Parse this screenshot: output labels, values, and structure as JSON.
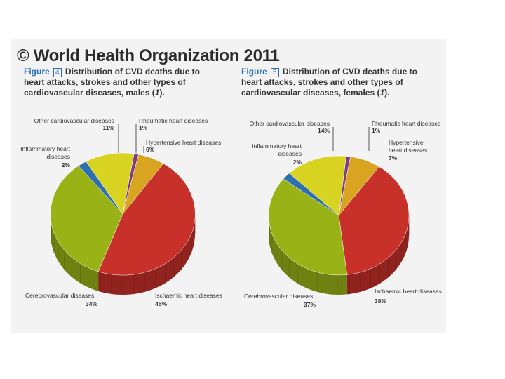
{
  "copyright": "© World Health Organization 2011",
  "colors": {
    "ischaemic": "#c8302a",
    "cerebrovascular": "#99b317",
    "inflammatory": "#2e6fb0",
    "other": "#d8d321",
    "rheumatic": "#7d3a86",
    "hypertensive": "#d9a520"
  },
  "chart_data": [
    {
      "type": "pie",
      "figure_label": "Figure",
      "figure_number": "4",
      "title": "Distribution of CVD deaths due to heart attacks, strokes and other types of cardiovascular diseases, males (1).",
      "title_main": "Distribution of CVD deaths due to heart attacks, strokes and other types of cardiovascular diseases, males (",
      "title_ref": "1",
      "title_end": ").",
      "slices": [
        {
          "key": "ischaemic",
          "label": "Ischaemic heart diseases",
          "value": 46,
          "value_label": "46%"
        },
        {
          "key": "cerebrovascular",
          "label": "Cerebrovascular diseases",
          "value": 34,
          "value_label": "34%"
        },
        {
          "key": "inflammatory",
          "label": "Inflammatory heart diseases",
          "label_lines": [
            "Inflammatory heart",
            "diseases"
          ],
          "value": 2,
          "value_label": "2%"
        },
        {
          "key": "other",
          "label": "Other cardiovascular diseases",
          "value": 11,
          "value_label": "11%"
        },
        {
          "key": "rheumatic",
          "label": "Rheumatic heart diseases",
          "value": 1,
          "value_label": "1%"
        },
        {
          "key": "hypertensive",
          "label": "Hypertensive heart diseases",
          "label_lines": [
            "Hypertensive heart diseases"
          ],
          "value": 6,
          "value_label": "6%"
        }
      ]
    },
    {
      "type": "pie",
      "figure_label": "Figure",
      "figure_number": "5",
      "title": "Distribution of CVD deaths due to heart attacks, strokes and other types of cardiovascular diseases, females (1).",
      "title_main": "Distribution of CVD deaths due to heart attacks, strokes and other types of cardiovascular diseases, females (",
      "title_ref": "1",
      "title_end": ").",
      "slices": [
        {
          "key": "ischaemic",
          "label": "Ischaemic heart diseases",
          "value": 38,
          "value_label": "38%"
        },
        {
          "key": "cerebrovascular",
          "label": "Cerebrovascular diseases",
          "value": 37,
          "value_label": "37%"
        },
        {
          "key": "inflammatory",
          "label": "Inflammatory heart diseases",
          "label_lines": [
            "Inflammatory heart",
            "diseases"
          ],
          "value": 2,
          "value_label": "2%"
        },
        {
          "key": "other",
          "label": "Other cardiovascular diseases",
          "value": 14,
          "value_label": "14%"
        },
        {
          "key": "rheumatic",
          "label": "Rheumatic heart diseases",
          "value": 1,
          "value_label": "1%"
        },
        {
          "key": "hypertensive",
          "label": "Hypertensive heart diseases",
          "label_lines": [
            "Hypertensive",
            "heart diseases"
          ],
          "value": 7,
          "value_label": "7%"
        }
      ]
    }
  ]
}
